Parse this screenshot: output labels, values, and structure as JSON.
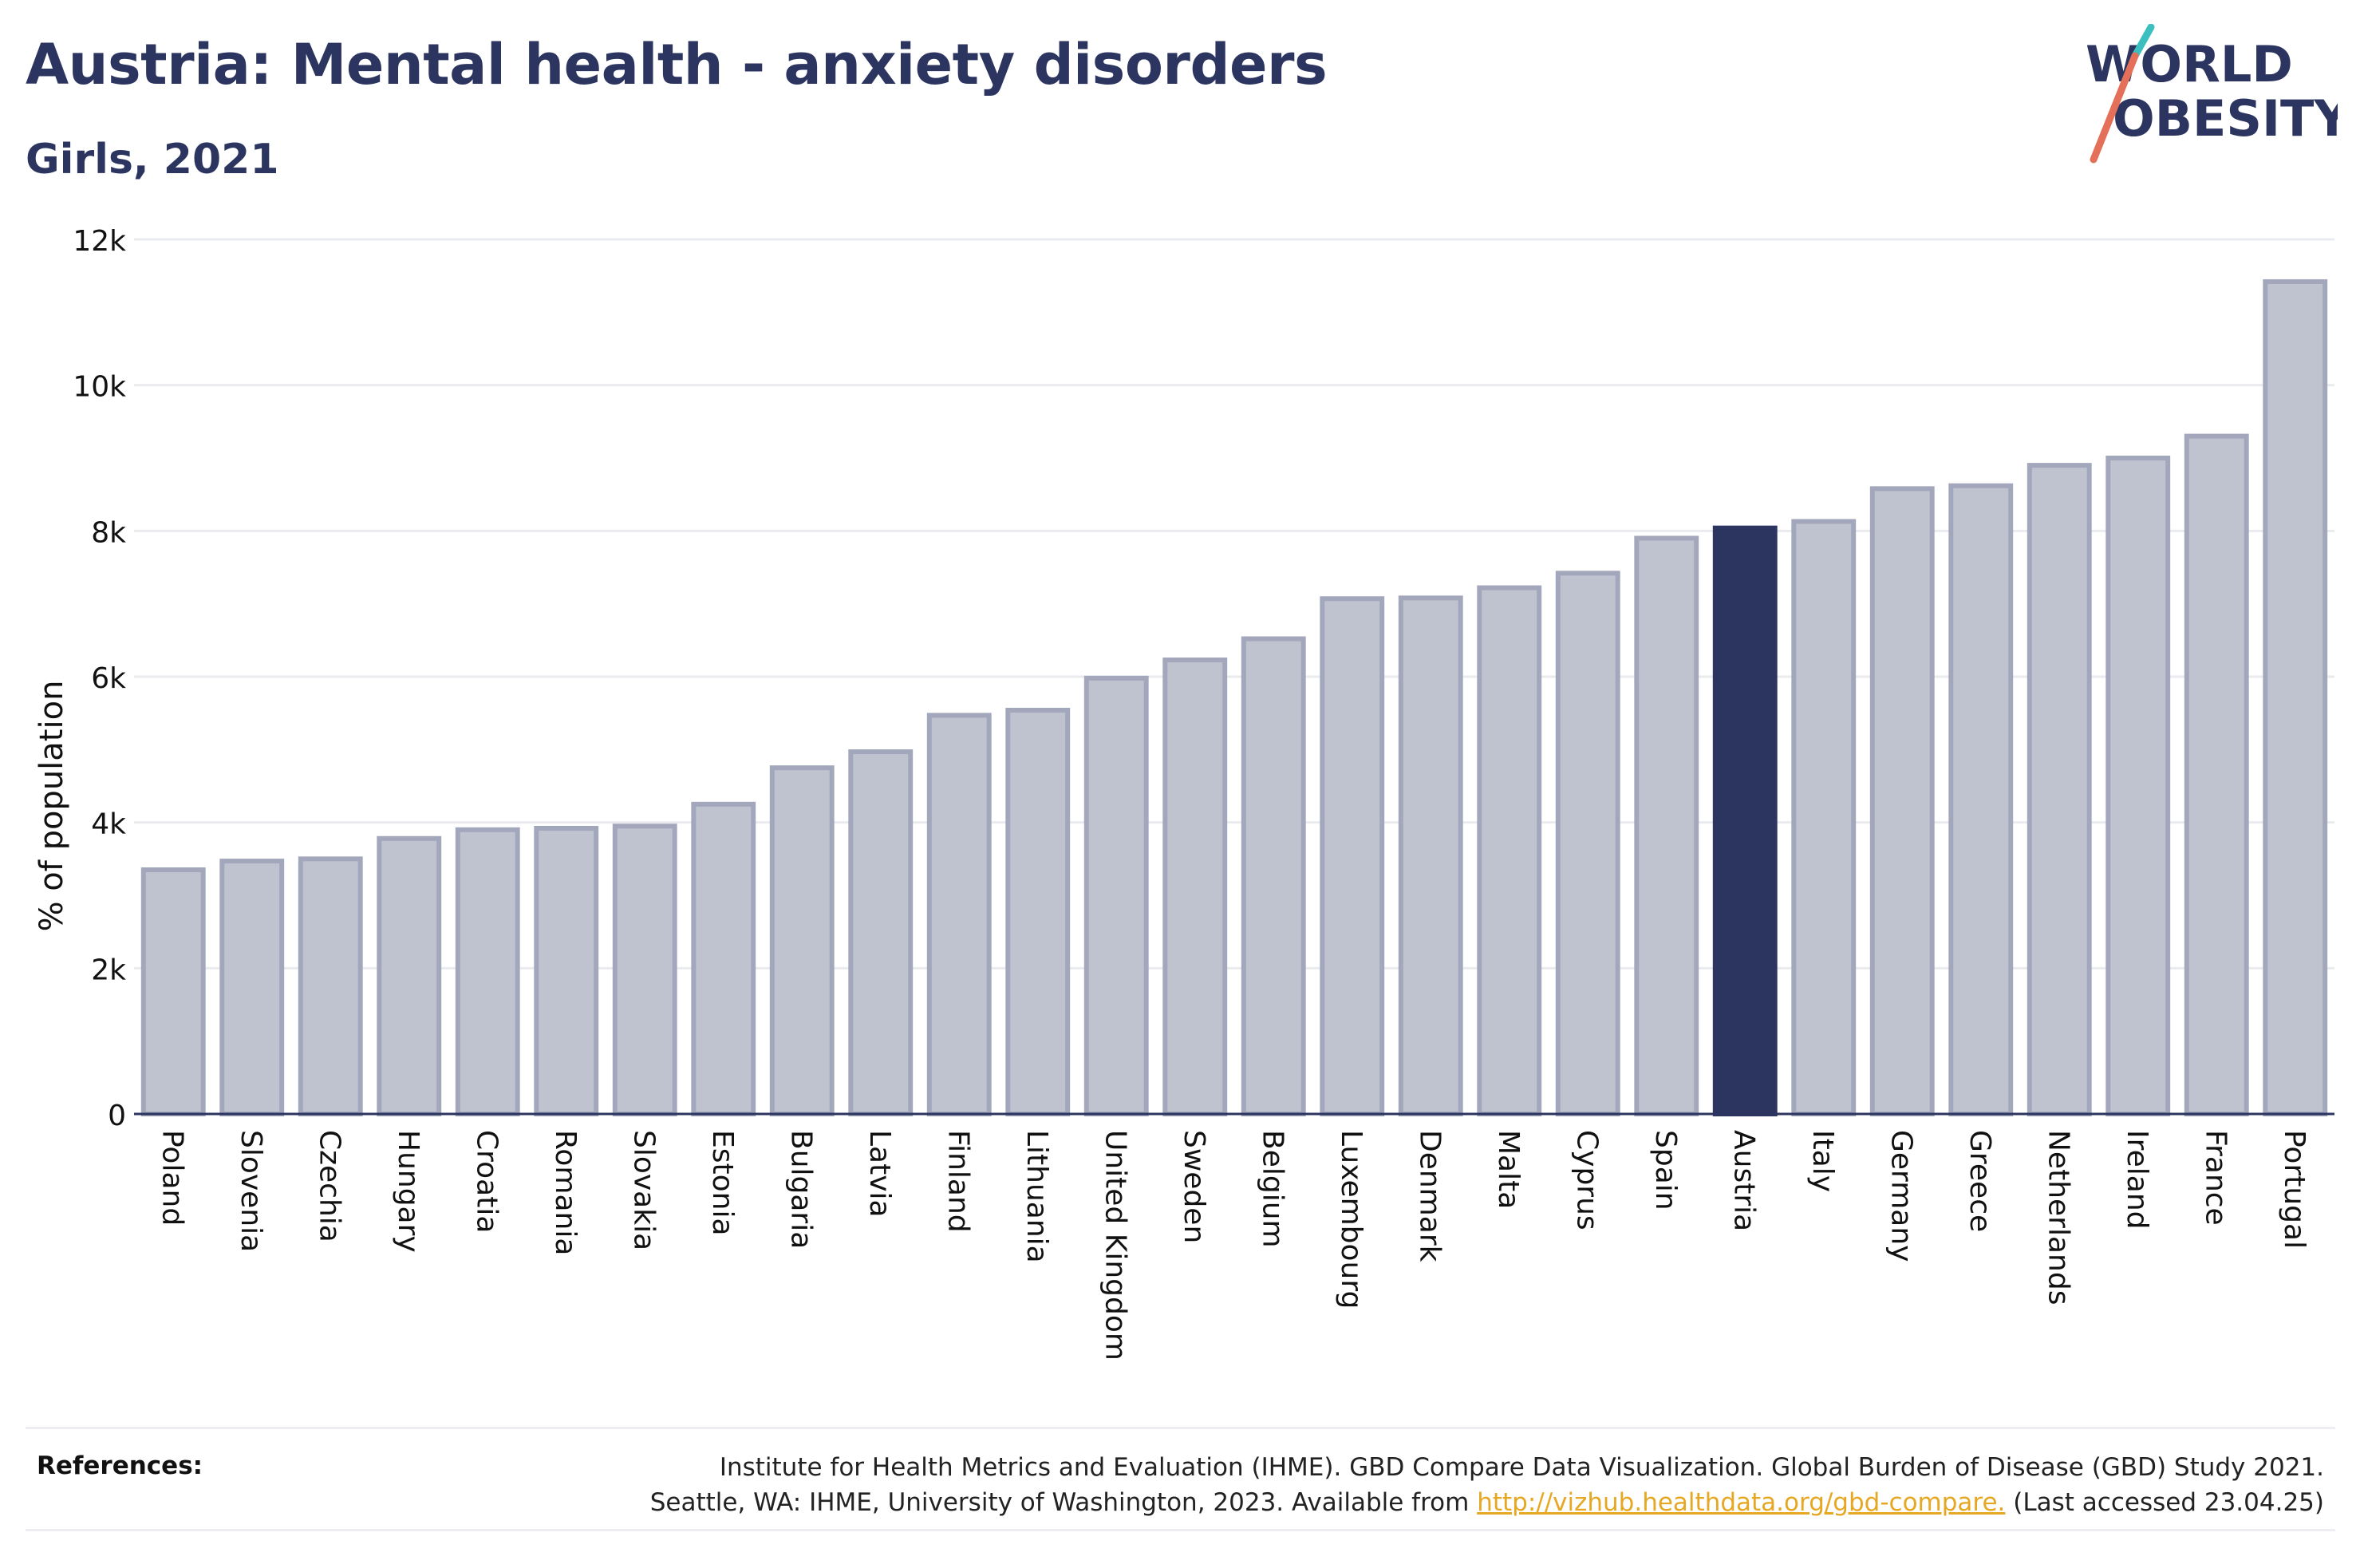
{
  "title": "Austria: Mental health - anxiety disorders",
  "subtitle": "Girls, 2021",
  "logo": {
    "line1": "WORLD",
    "line2": "OBESITY"
  },
  "references": {
    "label": "References:",
    "line1": "Institute for Health Metrics and Evaluation (IHME). GBD Compare Data Visualization. Global Burden of Disease (GBD) Study 2021.",
    "line2_prefix": "Seattle, WA: IHME, University of Washington, 2023. Available from ",
    "link": "http://vizhub.healthdata.org/gbd-compare.",
    "line2_suffix": " (Last accessed 23.04.25)"
  },
  "colors": {
    "highlight": "#2b3560",
    "bar": "#bfc3d0",
    "bar_stroke": "#a2a7bc",
    "grid": "#e9ebef"
  },
  "chart_data": {
    "type": "bar",
    "ylabel": "% of population",
    "ylim": [
      0,
      12000
    ],
    "yticks": [
      0,
      2000,
      4000,
      6000,
      8000,
      10000,
      12000
    ],
    "ytick_labels": [
      "0",
      "2k",
      "4k",
      "6k",
      "8k",
      "10k",
      "12k"
    ],
    "highlight": "Austria",
    "categories": [
      "Poland",
      "Slovenia",
      "Czechia",
      "Hungary",
      "Croatia",
      "Romania",
      "Slovakia",
      "Estonia",
      "Bulgaria",
      "Latvia",
      "Finland",
      "Lithuania",
      "United Kingdom",
      "Sweden",
      "Belgium",
      "Luxembourg",
      "Denmark",
      "Malta",
      "Cyprus",
      "Spain",
      "Austria",
      "Italy",
      "Germany",
      "Greece",
      "Netherlands",
      "Ireland",
      "France",
      "Portugal"
    ],
    "values": [
      3350,
      3470,
      3500,
      3780,
      3900,
      3920,
      3950,
      4250,
      4750,
      4970,
      5470,
      5540,
      5980,
      6230,
      6520,
      7070,
      7080,
      7220,
      7420,
      7900,
      8040,
      8130,
      8580,
      8620,
      8900,
      9000,
      9300,
      11420
    ]
  }
}
